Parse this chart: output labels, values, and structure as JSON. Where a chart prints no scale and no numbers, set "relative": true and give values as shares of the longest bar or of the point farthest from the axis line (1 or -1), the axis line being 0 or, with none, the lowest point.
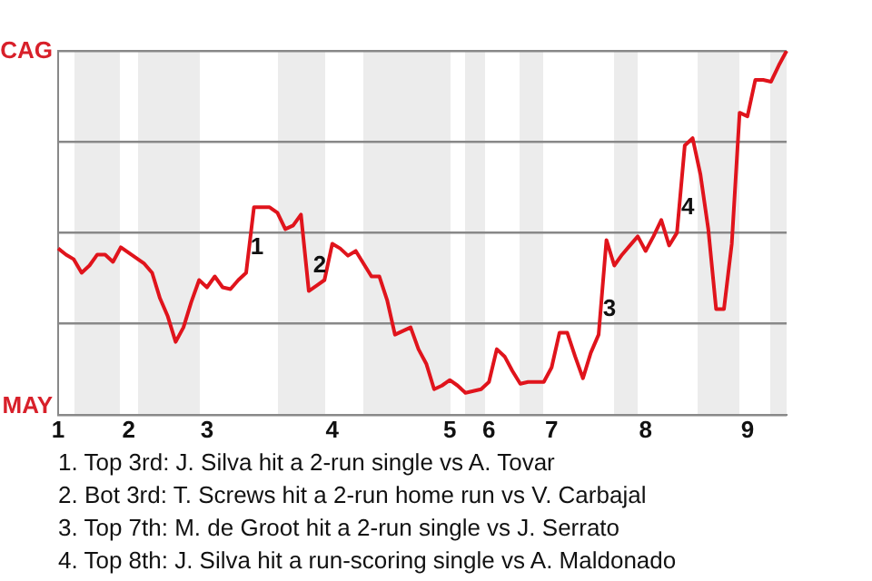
{
  "chart_data": {
    "type": "line",
    "relative": true,
    "categories": [
      "1",
      null,
      null,
      null,
      null,
      null,
      null,
      null,
      null,
      "2",
      null,
      null,
      null,
      null,
      null,
      null,
      null,
      null,
      null,
      "3",
      null,
      null,
      null,
      null,
      null,
      null,
      null,
      null,
      null,
      null,
      null,
      null,
      null,
      null,
      null,
      "4",
      null,
      null,
      null,
      null,
      null,
      null,
      null,
      null,
      null,
      null,
      null,
      null,
      null,
      null,
      "5",
      null,
      null,
      null,
      null,
      "6",
      null,
      null,
      null,
      null,
      null,
      null,
      null,
      "7",
      null,
      null,
      null,
      null,
      null,
      null,
      null,
      null,
      null,
      null,
      null,
      "8",
      null,
      null,
      null,
      null,
      null,
      null,
      null,
      null,
      null,
      null,
      null,
      null,
      "9",
      null,
      null,
      null,
      null,
      null
    ],
    "series": [
      {
        "color": "#e0141c",
        "values": [
          0.457,
          0.44,
          0.427,
          0.39,
          0.41,
          0.44,
          0.44,
          0.42,
          0.46,
          0.445,
          0.43,
          0.415,
          0.39,
          0.32,
          0.27,
          0.2,
          0.24,
          0.31,
          0.37,
          0.35,
          0.38,
          0.35,
          0.345,
          0.37,
          0.39,
          0.57,
          0.57,
          0.57,
          0.555,
          0.51,
          0.52,
          0.55,
          0.34,
          0.355,
          0.37,
          0.47,
          0.457,
          0.437,
          0.45,
          0.415,
          0.38,
          0.38,
          0.315,
          0.22,
          0.23,
          0.24,
          0.18,
          0.14,
          0.07,
          0.08,
          0.095,
          0.08,
          0.06,
          0.065,
          0.07,
          0.09,
          0.18,
          0.16,
          0.12,
          0.085,
          0.09,
          0.09,
          0.09,
          0.13,
          0.225,
          0.225,
          0.16,
          0.1,
          0.17,
          0.22,
          0.48,
          0.41,
          0.44,
          0.465,
          0.49,
          0.45,
          0.49,
          0.535,
          0.465,
          0.5,
          0.74,
          0.76,
          0.66,
          0.51,
          0.29,
          0.29,
          0.47,
          0.83,
          0.82,
          0.92,
          0.92,
          0.915,
          0.96,
          1.0
        ]
      }
    ],
    "grid": "y",
    "annotations": [
      "CAG",
      "MAY",
      "1",
      "2",
      "3",
      "4",
      "1. Top 3rd: J. Silva hit a 2-run single vs A. Tovar",
      "2. Bot 3rd: T. Screws hit a 2-run home run vs V. Carbajal",
      "3. Top 7th: M. de Groot hit a 2-run single vs J. Serrato",
      "4. Top 8th: J. Silva hit a run-scoring single vs A. Maldonado"
    ]
  }
}
